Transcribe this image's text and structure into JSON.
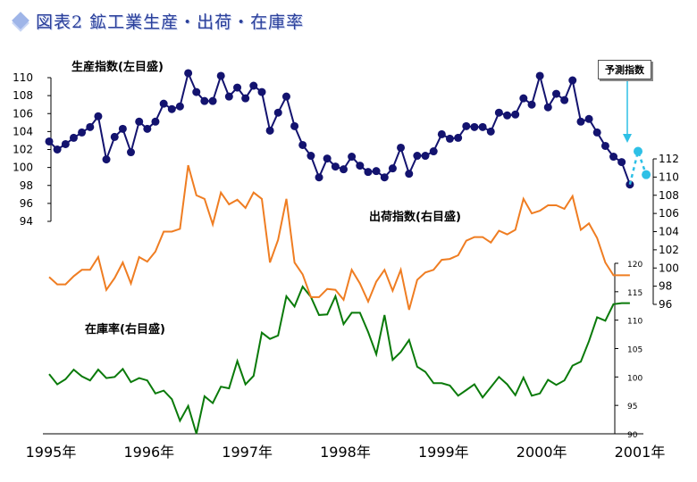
{
  "title": "図表2 鉱工業生産・出荷・在庫率",
  "forecast_label": "予測指数",
  "chart_data": {
    "type": "line",
    "x_axis": {
      "labels": [
        "1995年",
        "1996年",
        "1997年",
        "1998年",
        "1999年",
        "2000年",
        "2001年"
      ]
    },
    "axes": {
      "production": {
        "label": "生産指数(左目盛)",
        "ylim": [
          94,
          110
        ],
        "ticks": [
          94,
          96,
          98,
          100,
          102,
          104,
          106,
          108,
          110
        ]
      },
      "shipment": {
        "label": "出荷指数(右目盛)",
        "ylim": [
          96,
          112
        ],
        "ticks": [
          96,
          98,
          100,
          102,
          104,
          106,
          108,
          110,
          112
        ]
      },
      "inventory": {
        "label": "在庫率(右目盛)",
        "ylim": [
          90,
          120
        ],
        "ticks": [
          90,
          95,
          100,
          105,
          110,
          115,
          120
        ]
      }
    },
    "series": [
      {
        "name": "生産指数(左目盛)",
        "axis": "production",
        "color": "#13136f",
        "x": [
          0.0,
          0.083,
          0.167,
          0.25,
          0.333,
          0.417,
          0.5,
          0.583,
          0.667,
          0.75,
          0.833,
          0.917,
          1.0,
          1.083,
          1.167,
          1.25,
          1.333,
          1.417,
          1.5,
          1.583,
          1.667,
          1.75,
          1.833,
          1.917,
          2.0,
          2.083,
          2.167,
          2.25,
          2.333,
          2.417,
          2.5,
          2.583,
          2.667,
          2.75,
          2.833,
          2.917,
          3.0,
          3.083,
          3.167,
          3.25,
          3.333,
          3.417,
          3.5,
          3.583,
          3.667,
          3.75,
          3.833,
          3.917,
          4.0,
          4.083,
          4.167,
          4.25,
          4.333,
          4.417,
          4.5,
          4.583,
          4.667,
          4.75,
          4.833,
          4.917,
          5.0,
          5.083,
          5.167,
          5.25,
          5.333,
          5.417,
          5.5,
          5.583,
          5.667,
          5.75
        ],
        "values": [
          102.9,
          102.0,
          102.6,
          103.3,
          103.9,
          104.5,
          105.7,
          100.9,
          103.4,
          104.3,
          101.7,
          105.1,
          104.3,
          105.1,
          107.1,
          106.5,
          106.8,
          110.5,
          108.4,
          107.4,
          107.4,
          110.2,
          107.9,
          108.9,
          107.7,
          109.1,
          108.4,
          104.1,
          106.1,
          107.9,
          104.6,
          102.5,
          101.3,
          98.9,
          101.0,
          100.1,
          99.8,
          101.2,
          100.2,
          99.5,
          99.6,
          98.9,
          99.9,
          102.2,
          99.3,
          101.3,
          101.3,
          101.8,
          103.7,
          103.2,
          103.3,
          104.6,
          104.5,
          104.5,
          104.0,
          106.1,
          105.8,
          105.9,
          107.7,
          107.0,
          110.2,
          106.7,
          108.2,
          107.5,
          109.7,
          105.1,
          105.4,
          103.9,
          102.4,
          101.2
        ],
        "extra_x": [
          5.833
        ],
        "extra_values": [
          100.6
        ]
      },
      {
        "name": "生産指数(左目盛)",
        "axis": "production",
        "color": "#13136f",
        "x": [
          5.917
        ],
        "values": [
          98.1
        ]
      },
      {
        "name": "予測指数",
        "axis": "production",
        "color": "#2ec0e6",
        "x": [
          5.917,
          6.0,
          6.083
        ],
        "values": [
          98.1,
          101.8,
          99.2
        ]
      },
      {
        "name": "出荷指数(右目盛)",
        "axis": "shipment",
        "color": "#ef7d22",
        "x": [
          0.0,
          0.083,
          0.167,
          0.25,
          0.333,
          0.417,
          0.5,
          0.583,
          0.667,
          0.75,
          0.833,
          0.917,
          1.0,
          1.083,
          1.167,
          1.25,
          1.333,
          1.417,
          1.5,
          1.583,
          1.667,
          1.75,
          1.833,
          1.917,
          2.0,
          2.083,
          2.167,
          2.25,
          2.333,
          2.417,
          2.5,
          2.583,
          2.667,
          2.75,
          2.833,
          2.917,
          3.0,
          3.083,
          3.167,
          3.25,
          3.333,
          3.417,
          3.5,
          3.583,
          3.667,
          3.75,
          3.833,
          3.917,
          4.0,
          4.083,
          4.167,
          4.25,
          4.333,
          4.417,
          4.5,
          4.583,
          4.667,
          4.75,
          4.833,
          4.917,
          5.0,
          5.083,
          5.167,
          5.25,
          5.333,
          5.417,
          5.5,
          5.583,
          5.667,
          5.75,
          5.833,
          5.917
        ],
        "values": [
          99.0,
          98.2,
          98.2,
          99.1,
          99.8,
          99.8,
          101.2,
          97.6,
          98.9,
          100.6,
          98.3,
          101.2,
          100.7,
          101.8,
          104.0,
          104.0,
          104.3,
          111.3,
          108.0,
          107.6,
          104.8,
          108.3,
          107.0,
          107.5,
          106.6,
          108.3,
          107.6,
          100.6,
          103.1,
          107.6,
          100.6,
          99.3,
          96.8,
          96.8,
          97.7,
          97.6,
          96.5,
          99.8,
          98.3,
          96.3,
          98.5,
          99.8,
          97.5,
          99.8,
          95.4,
          98.7,
          99.5,
          99.8,
          100.9,
          101.0,
          101.4,
          103.0,
          103.4,
          103.4,
          102.8,
          104.1,
          103.7,
          104.2,
          107.6,
          106.0,
          106.3,
          106.9,
          106.9,
          106.5,
          107.9,
          104.2,
          104.9,
          103.3,
          100.6,
          99.2,
          99.2,
          99.2
        ]
      },
      {
        "name": "在庫率(右目盛)",
        "axis": "inventory",
        "color": "#0a7a0a",
        "x": [
          0.0,
          0.083,
          0.167,
          0.25,
          0.333,
          0.417,
          0.5,
          0.583,
          0.667,
          0.75,
          0.833,
          0.917,
          1.0,
          1.083,
          1.167,
          1.25,
          1.333,
          1.417,
          1.5,
          1.583,
          1.667,
          1.75,
          1.833,
          1.917,
          2.0,
          2.083,
          2.167,
          2.25,
          2.333,
          2.417,
          2.5,
          2.583,
          2.667,
          2.75,
          2.833,
          2.917,
          3.0,
          3.083,
          3.167,
          3.25,
          3.333,
          3.417,
          3.5,
          3.583,
          3.667,
          3.75,
          3.833,
          3.917,
          4.0,
          4.083,
          4.167,
          4.25,
          4.333,
          4.417,
          4.5,
          4.583,
          4.667,
          4.75,
          4.833,
          4.917,
          5.0,
          5.083,
          5.167,
          5.25,
          5.333,
          5.417,
          5.5,
          5.583,
          5.667,
          5.75,
          5.833,
          5.917
        ],
        "values": [
          100.5,
          98.7,
          99.6,
          101.3,
          100.1,
          99.4,
          101.3,
          99.8,
          100.0,
          101.4,
          99.1,
          99.8,
          99.4,
          97.1,
          97.6,
          96.1,
          92.3,
          94.9,
          90.0,
          96.6,
          95.4,
          98.3,
          98.0,
          102.8,
          98.7,
          100.2,
          107.8,
          106.7,
          107.3,
          114.2,
          112.4,
          115.9,
          114.1,
          110.9,
          111.0,
          114.2,
          109.3,
          111.3,
          111.3,
          107.9,
          104.0,
          110.9,
          103.0,
          104.4,
          106.5,
          101.8,
          100.9,
          98.9,
          98.9,
          98.5,
          96.7,
          97.7,
          98.7,
          96.4,
          98.2,
          100.0,
          98.7,
          96.8,
          99.9,
          96.7,
          97.1,
          99.5,
          98.6,
          99.4,
          102.0,
          102.7,
          106.3,
          110.5,
          109.9,
          112.8,
          113.0,
          113.0
        ]
      }
    ]
  }
}
